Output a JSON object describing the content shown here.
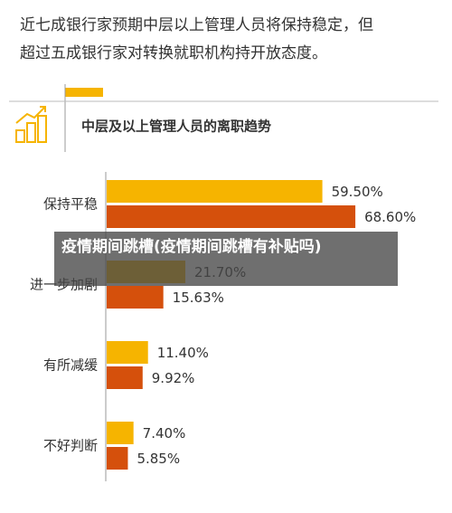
{
  "article": {
    "intro_lines": [
      "近七成银行家预期中层以上管理人员将保持稳定，但",
      "超过五成银行家对转换就职机构持开放态度。"
    ],
    "overlay_caption": "疫情期间跳槽(疫情期间跳槽有补贴吗)"
  },
  "chart_data": {
    "type": "bar",
    "orientation": "horizontal",
    "title": "中层及以上管理人员的离职趋势",
    "categories": [
      "保持平稳",
      "进一步加剧",
      "有所减缓",
      "不好判断"
    ],
    "series": [
      {
        "color": "#f6b400",
        "values": [
          59.5,
          21.7,
          11.4,
          7.4
        ],
        "value_labels": [
          "59.50%",
          "21.70%",
          "11.40%",
          "7.40%"
        ]
      },
      {
        "color": "#d5500c",
        "values": [
          68.6,
          15.63,
          9.92,
          5.85
        ],
        "value_labels": [
          "68.60%",
          "15.63%",
          "9.92%",
          "5.85%"
        ]
      }
    ]
  }
}
